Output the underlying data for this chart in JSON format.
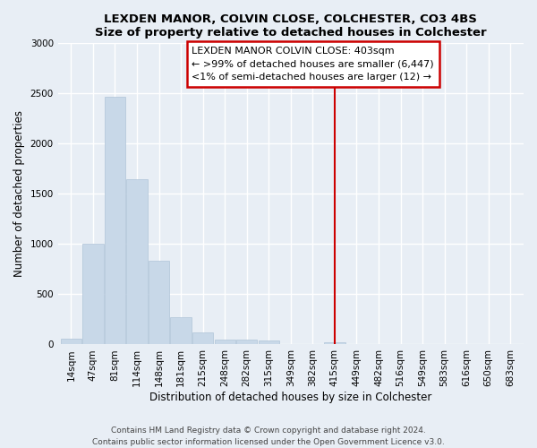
{
  "title": "LEXDEN MANOR, COLVIN CLOSE, COLCHESTER, CO3 4BS",
  "subtitle": "Size of property relative to detached houses in Colchester",
  "xlabel": "Distribution of detached houses by size in Colchester",
  "ylabel": "Number of detached properties",
  "bin_labels": [
    "14sqm",
    "47sqm",
    "81sqm",
    "114sqm",
    "148sqm",
    "181sqm",
    "215sqm",
    "248sqm",
    "282sqm",
    "315sqm",
    "349sqm",
    "382sqm",
    "415sqm",
    "449sqm",
    "482sqm",
    "516sqm",
    "549sqm",
    "583sqm",
    "616sqm",
    "650sqm",
    "683sqm"
  ],
  "bar_heights": [
    55,
    1000,
    2470,
    1650,
    835,
    270,
    120,
    45,
    45,
    40,
    0,
    0,
    20,
    0,
    0,
    0,
    0,
    0,
    0,
    0,
    0
  ],
  "bar_color": "#c8d8e8",
  "bar_edge_color": "#b0c4d8",
  "vline_x_idx": 12,
  "vline_color": "#cc0000",
  "annotation_title": "LEXDEN MANOR COLVIN CLOSE: 403sqm",
  "annotation_line1": "← >99% of detached houses are smaller (6,447)",
  "annotation_line2": "<1% of semi-detached houses are larger (12) →",
  "annotation_box_color": "#cc0000",
  "ylim": [
    0,
    3000
  ],
  "yticks": [
    0,
    500,
    1000,
    1500,
    2000,
    2500,
    3000
  ],
  "footer1": "Contains HM Land Registry data © Crown copyright and database right 2024.",
  "footer2": "Contains public sector information licensed under the Open Government Licence v3.0.",
  "bg_color": "#e8eef5",
  "grid_color": "#ffffff",
  "title_fontsize": 9.5,
  "subtitle_fontsize": 9.0,
  "axis_label_fontsize": 8.5,
  "tick_fontsize": 7.5,
  "footer_fontsize": 6.5,
  "annotation_fontsize": 8.0
}
